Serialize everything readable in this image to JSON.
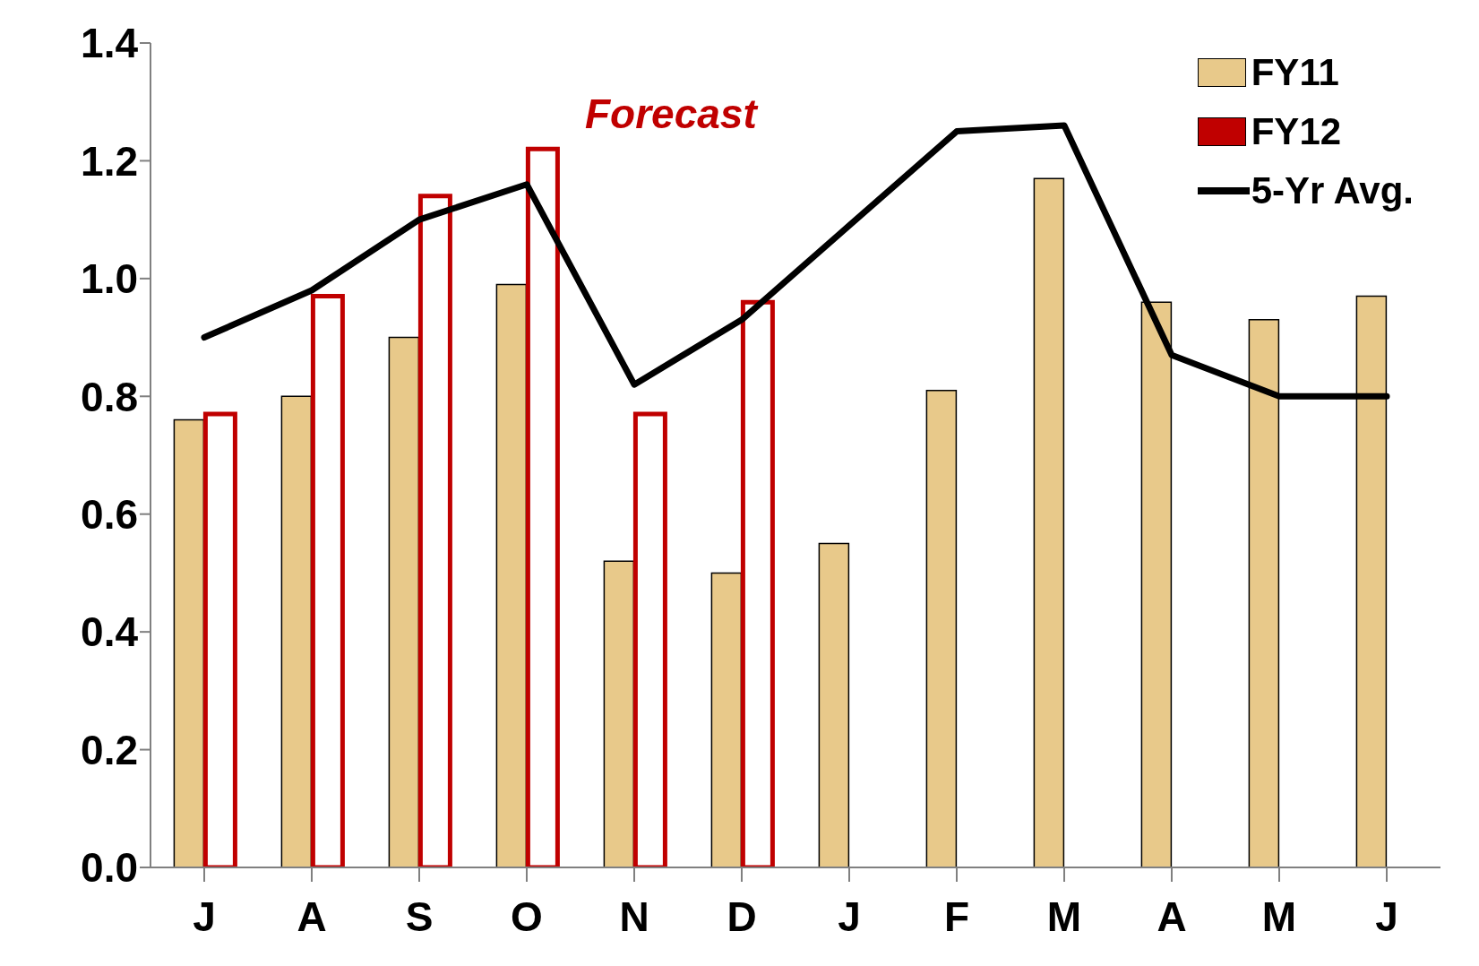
{
  "chart_data": {
    "type": "bar",
    "categories": [
      "J",
      "A",
      "S",
      "O",
      "N",
      "D",
      "J",
      "F",
      "M",
      "A",
      "M",
      "J"
    ],
    "series": [
      {
        "name": "FY11",
        "color": "#e8c98a",
        "values": [
          0.76,
          0.8,
          0.9,
          0.99,
          0.52,
          0.5,
          0.55,
          0.81,
          1.17,
          0.96,
          0.93,
          0.97
        ]
      },
      {
        "name": "FY12",
        "color": "#c00000",
        "values": [
          0.77,
          0.97,
          1.14,
          1.22,
          0.77,
          0.96,
          null,
          null,
          null,
          null,
          null,
          null
        ]
      },
      {
        "name": "5-Yr Avg.",
        "type": "line",
        "color": "#000000",
        "values": [
          0.9,
          0.98,
          1.1,
          1.16,
          0.82,
          0.93,
          1.09,
          1.25,
          1.26,
          0.87,
          0.8,
          0.8
        ]
      }
    ],
    "ylim": [
      0,
      1.4
    ],
    "yticks": [
      {
        "value": 0,
        "label": "0.0"
      },
      {
        "value": 0.2,
        "label": "0.2"
      },
      {
        "value": 0.4,
        "label": "0.4"
      },
      {
        "value": 0.6,
        "label": "0.6"
      },
      {
        "value": 0.8,
        "label": "0.8"
      },
      {
        "value": 1,
        "label": "1.0"
      },
      {
        "value": 1.2,
        "label": "1.2"
      },
      {
        "value": 1.4,
        "label": "1.4"
      }
    ],
    "annotations": [
      "Forecast"
    ],
    "legend": "top right",
    "grid": false,
    "marker": "none"
  }
}
